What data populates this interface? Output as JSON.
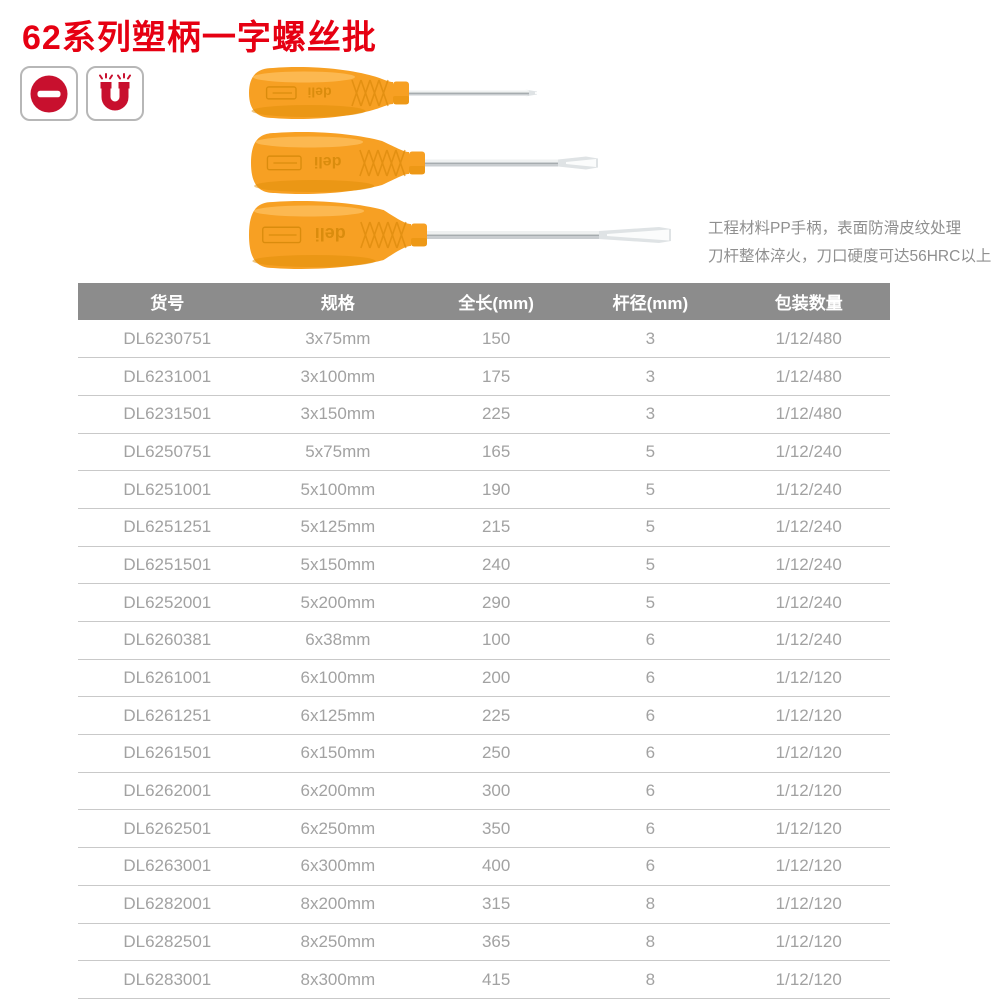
{
  "title": "62系列塑柄一字螺丝批",
  "feature_icons": [
    {
      "name": "slotted-drive-icon"
    },
    {
      "name": "magnetic-tip-icon"
    }
  ],
  "products": [
    {
      "name": "screwdriver-small"
    },
    {
      "name": "screwdriver-medium"
    },
    {
      "name": "screwdriver-large"
    }
  ],
  "description": [
    "工程材料PP手柄，表面防滑皮纹处理",
    "刀杆整体淬火，刀口硬度可达56HRC以上"
  ],
  "table": {
    "headers": [
      "货号",
      "规格",
      "全长(mm)",
      "杆径(mm)",
      "包装数量"
    ],
    "rows": [
      [
        "DL6230751",
        "3x75mm",
        "150",
        "3",
        "1/12/480"
      ],
      [
        "DL6231001",
        "3x100mm",
        "175",
        "3",
        "1/12/480"
      ],
      [
        "DL6231501",
        "3x150mm",
        "225",
        "3",
        "1/12/480"
      ],
      [
        "DL6250751",
        "5x75mm",
        "165",
        "5",
        "1/12/240"
      ],
      [
        "DL6251001",
        "5x100mm",
        "190",
        "5",
        "1/12/240"
      ],
      [
        "DL6251251",
        "5x125mm",
        "215",
        "5",
        "1/12/240"
      ],
      [
        "DL6251501",
        "5x150mm",
        "240",
        "5",
        "1/12/240"
      ],
      [
        "DL6252001",
        "5x200mm",
        "290",
        "5",
        "1/12/240"
      ],
      [
        "DL6260381",
        "6x38mm",
        "100",
        "6",
        "1/12/240"
      ],
      [
        "DL6261001",
        "6x100mm",
        "200",
        "6",
        "1/12/120"
      ],
      [
        "DL6261251",
        "6x125mm",
        "225",
        "6",
        "1/12/120"
      ],
      [
        "DL6261501",
        "6x150mm",
        "250",
        "6",
        "1/12/120"
      ],
      [
        "DL6262001",
        "6x200mm",
        "300",
        "6",
        "1/12/120"
      ],
      [
        "DL6262501",
        "6x250mm",
        "350",
        "6",
        "1/12/120"
      ],
      [
        "DL6263001",
        "6x300mm",
        "400",
        "6",
        "1/12/120"
      ],
      [
        "DL6282001",
        "8x200mm",
        "315",
        "8",
        "1/12/120"
      ],
      [
        "DL6282501",
        "8x250mm",
        "365",
        "8",
        "1/12/120"
      ],
      [
        "DL6283001",
        "8x300mm",
        "415",
        "8",
        "1/12/120"
      ]
    ]
  },
  "colors": {
    "accent-red": "#e60012",
    "icon-red": "#c8102e",
    "table-header-bg": "#8c8c8c",
    "table-header-text": "#ffffff",
    "table-cell-text": "#a2a2a2",
    "table-divider": "#c9c9c9",
    "description-text": "#8f8f8f",
    "handle-orange": "#f7a023"
  }
}
